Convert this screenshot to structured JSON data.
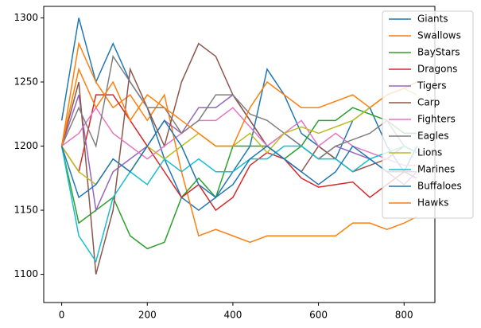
{
  "chart_data": {
    "type": "line",
    "x": [
      0,
      40,
      80,
      120,
      160,
      200,
      240,
      280,
      320,
      360,
      400,
      440,
      480,
      520,
      560,
      600,
      640,
      680,
      720,
      760,
      800,
      830
    ],
    "series": [
      {
        "name": "Giants",
        "color": "#1f77b4",
        "values": [
          1220,
          1300,
          1250,
          1280,
          1250,
          1230,
          1190,
          1160,
          1150,
          1160,
          1180,
          1200,
          1260,
          1240,
          1210,
          1200,
          1190,
          1220,
          1230,
          1200,
          1180,
          1200
        ]
      },
      {
        "name": "Swallows",
        "color": "#ff7f0e",
        "values": [
          1200,
          1280,
          1250,
          1230,
          1240,
          1220,
          1240,
          1180,
          1130,
          1135,
          1130,
          1125,
          1130,
          1130,
          1130,
          1130,
          1130,
          1140,
          1140,
          1135,
          1140,
          1145
        ]
      },
      {
        "name": "BayStars",
        "color": "#2ca02c",
        "values": [
          1200,
          1140,
          1150,
          1160,
          1130,
          1120,
          1125,
          1160,
          1175,
          1160,
          1200,
          1200,
          1200,
          1190,
          1200,
          1220,
          1220,
          1230,
          1225,
          1220,
          1210,
          1210
        ]
      },
      {
        "name": "Dragons",
        "color": "#d62728",
        "values": [
          1200,
          1180,
          1240,
          1240,
          1220,
          1200,
          1180,
          1160,
          1170,
          1150,
          1160,
          1185,
          1195,
          1190,
          1175,
          1168,
          1170,
          1172,
          1160,
          1170,
          1180,
          1175
        ]
      },
      {
        "name": "Tigers",
        "color": "#9467bd",
        "values": [
          1200,
          1240,
          1150,
          1180,
          1190,
          1200,
          1220,
          1210,
          1230,
          1230,
          1240,
          1220,
          1200,
          1210,
          1200,
          1190,
          1200,
          1195,
          1190,
          1180,
          1170,
          1180
        ]
      },
      {
        "name": "Carp",
        "color": "#8c564b",
        "values": [
          1200,
          1250,
          1100,
          1150,
          1260,
          1230,
          1200,
          1250,
          1280,
          1270,
          1240,
          1220,
          1200,
          1190,
          1180,
          1200,
          1190,
          1180,
          1185,
          1190,
          1200,
          1195
        ]
      },
      {
        "name": "Fighters",
        "color": "#e377c2",
        "values": [
          1200,
          1210,
          1230,
          1210,
          1200,
          1190,
          1200,
          1210,
          1220,
          1220,
          1230,
          1215,
          1200,
          1210,
          1220,
          1200,
          1210,
          1200,
          1195,
          1190,
          1185,
          1185
        ]
      },
      {
        "name": "Eagles",
        "color": "#7f7f7f",
        "values": [
          1200,
          1230,
          1200,
          1270,
          1250,
          1230,
          1230,
          1210,
          1220,
          1240,
          1240,
          1225,
          1220,
          1210,
          1200,
          1190,
          1200,
          1205,
          1210,
          1220,
          1200,
          1195
        ]
      },
      {
        "name": "Lions",
        "color": "#bcbd22",
        "values": [
          1200,
          1180,
          1170,
          1190,
          1180,
          1200,
          1190,
          1200,
          1210,
          1200,
          1200,
          1210,
          1195,
          1210,
          1215,
          1210,
          1215,
          1220,
          1230,
          1240,
          1245,
          1240
        ]
      },
      {
        "name": "Marines",
        "color": "#17becf",
        "values": [
          1200,
          1130,
          1110,
          1160,
          1180,
          1170,
          1190,
          1180,
          1190,
          1180,
          1180,
          1190,
          1190,
          1200,
          1200,
          1190,
          1190,
          1180,
          1190,
          1195,
          1200,
          1195
        ]
      },
      {
        "name": "Buffaloes",
        "color": "#1f77b4",
        "values": [
          1200,
          1160,
          1170,
          1190,
          1180,
          1200,
          1220,
          1200,
          1170,
          1160,
          1170,
          1190,
          1200,
          1190,
          1180,
          1170,
          1180,
          1200,
          1190,
          1180,
          1180,
          1180
        ]
      },
      {
        "name": "Hawks",
        "color": "#ff7f0e",
        "values": [
          1200,
          1260,
          1230,
          1250,
          1220,
          1240,
          1230,
          1220,
          1210,
          1200,
          1200,
          1230,
          1250,
          1240,
          1230,
          1230,
          1235,
          1240,
          1230,
          1240,
          1245,
          1250
        ]
      }
    ],
    "xlim": [
      -42,
      872
    ],
    "xticks": [
      0,
      200,
      400,
      600,
      800
    ],
    "ylim": [
      1078,
      1309
    ],
    "yticks": [
      1100,
      1150,
      1200,
      1250,
      1300
    ],
    "legend": "upper right"
  }
}
